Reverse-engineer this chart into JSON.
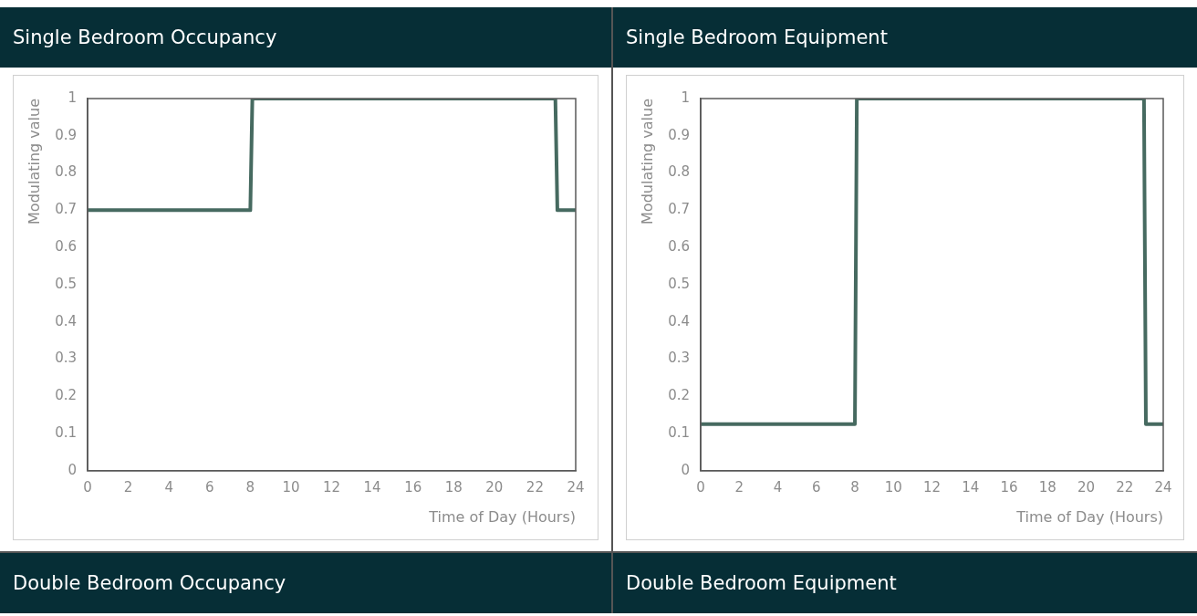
{
  "chart_data": [
    {
      "type": "line",
      "title": "Single Bedroom Occupancy",
      "xlabel": "Time of Day (Hours)",
      "ylabel": "Modulating value",
      "x": [
        0,
        8,
        8.1,
        23,
        23.1,
        24
      ],
      "values": [
        0.7,
        0.7,
        1,
        1,
        0.7,
        0.7
      ],
      "color": "#466a60",
      "xlim": [
        0,
        24
      ],
      "xticks": [
        0,
        2,
        4,
        6,
        8,
        10,
        12,
        14,
        16,
        18,
        20,
        22,
        24
      ],
      "ylim": [
        0,
        1
      ],
      "yticks": [
        0,
        0.1,
        0.2,
        0.3,
        0.4,
        0.5,
        0.6,
        0.7,
        0.8,
        0.9,
        1
      ],
      "grid": false,
      "legend": false,
      "marker": "none"
    },
    {
      "type": "line",
      "title": "Single Bedroom Equipment",
      "xlabel": "Time of Day (Hours)",
      "ylabel": "Modulating value",
      "x": [
        0,
        8,
        8.1,
        23,
        23.1,
        24
      ],
      "values": [
        0.125,
        0.125,
        1,
        1,
        0.125,
        0.125
      ],
      "color": "#466a60",
      "xlim": [
        0,
        24
      ],
      "xticks": [
        0,
        2,
        4,
        6,
        8,
        10,
        12,
        14,
        16,
        18,
        20,
        22,
        24
      ],
      "ylim": [
        0,
        1
      ],
      "yticks": [
        0,
        0.1,
        0.2,
        0.3,
        0.4,
        0.5,
        0.6,
        0.7,
        0.8,
        0.9,
        1
      ],
      "grid": false,
      "legend": false,
      "marker": "none"
    },
    {
      "type": "other",
      "title": "Double Bedroom Occupancy"
    },
    {
      "type": "other",
      "title": "Double Bedroom Equipment"
    }
  ]
}
